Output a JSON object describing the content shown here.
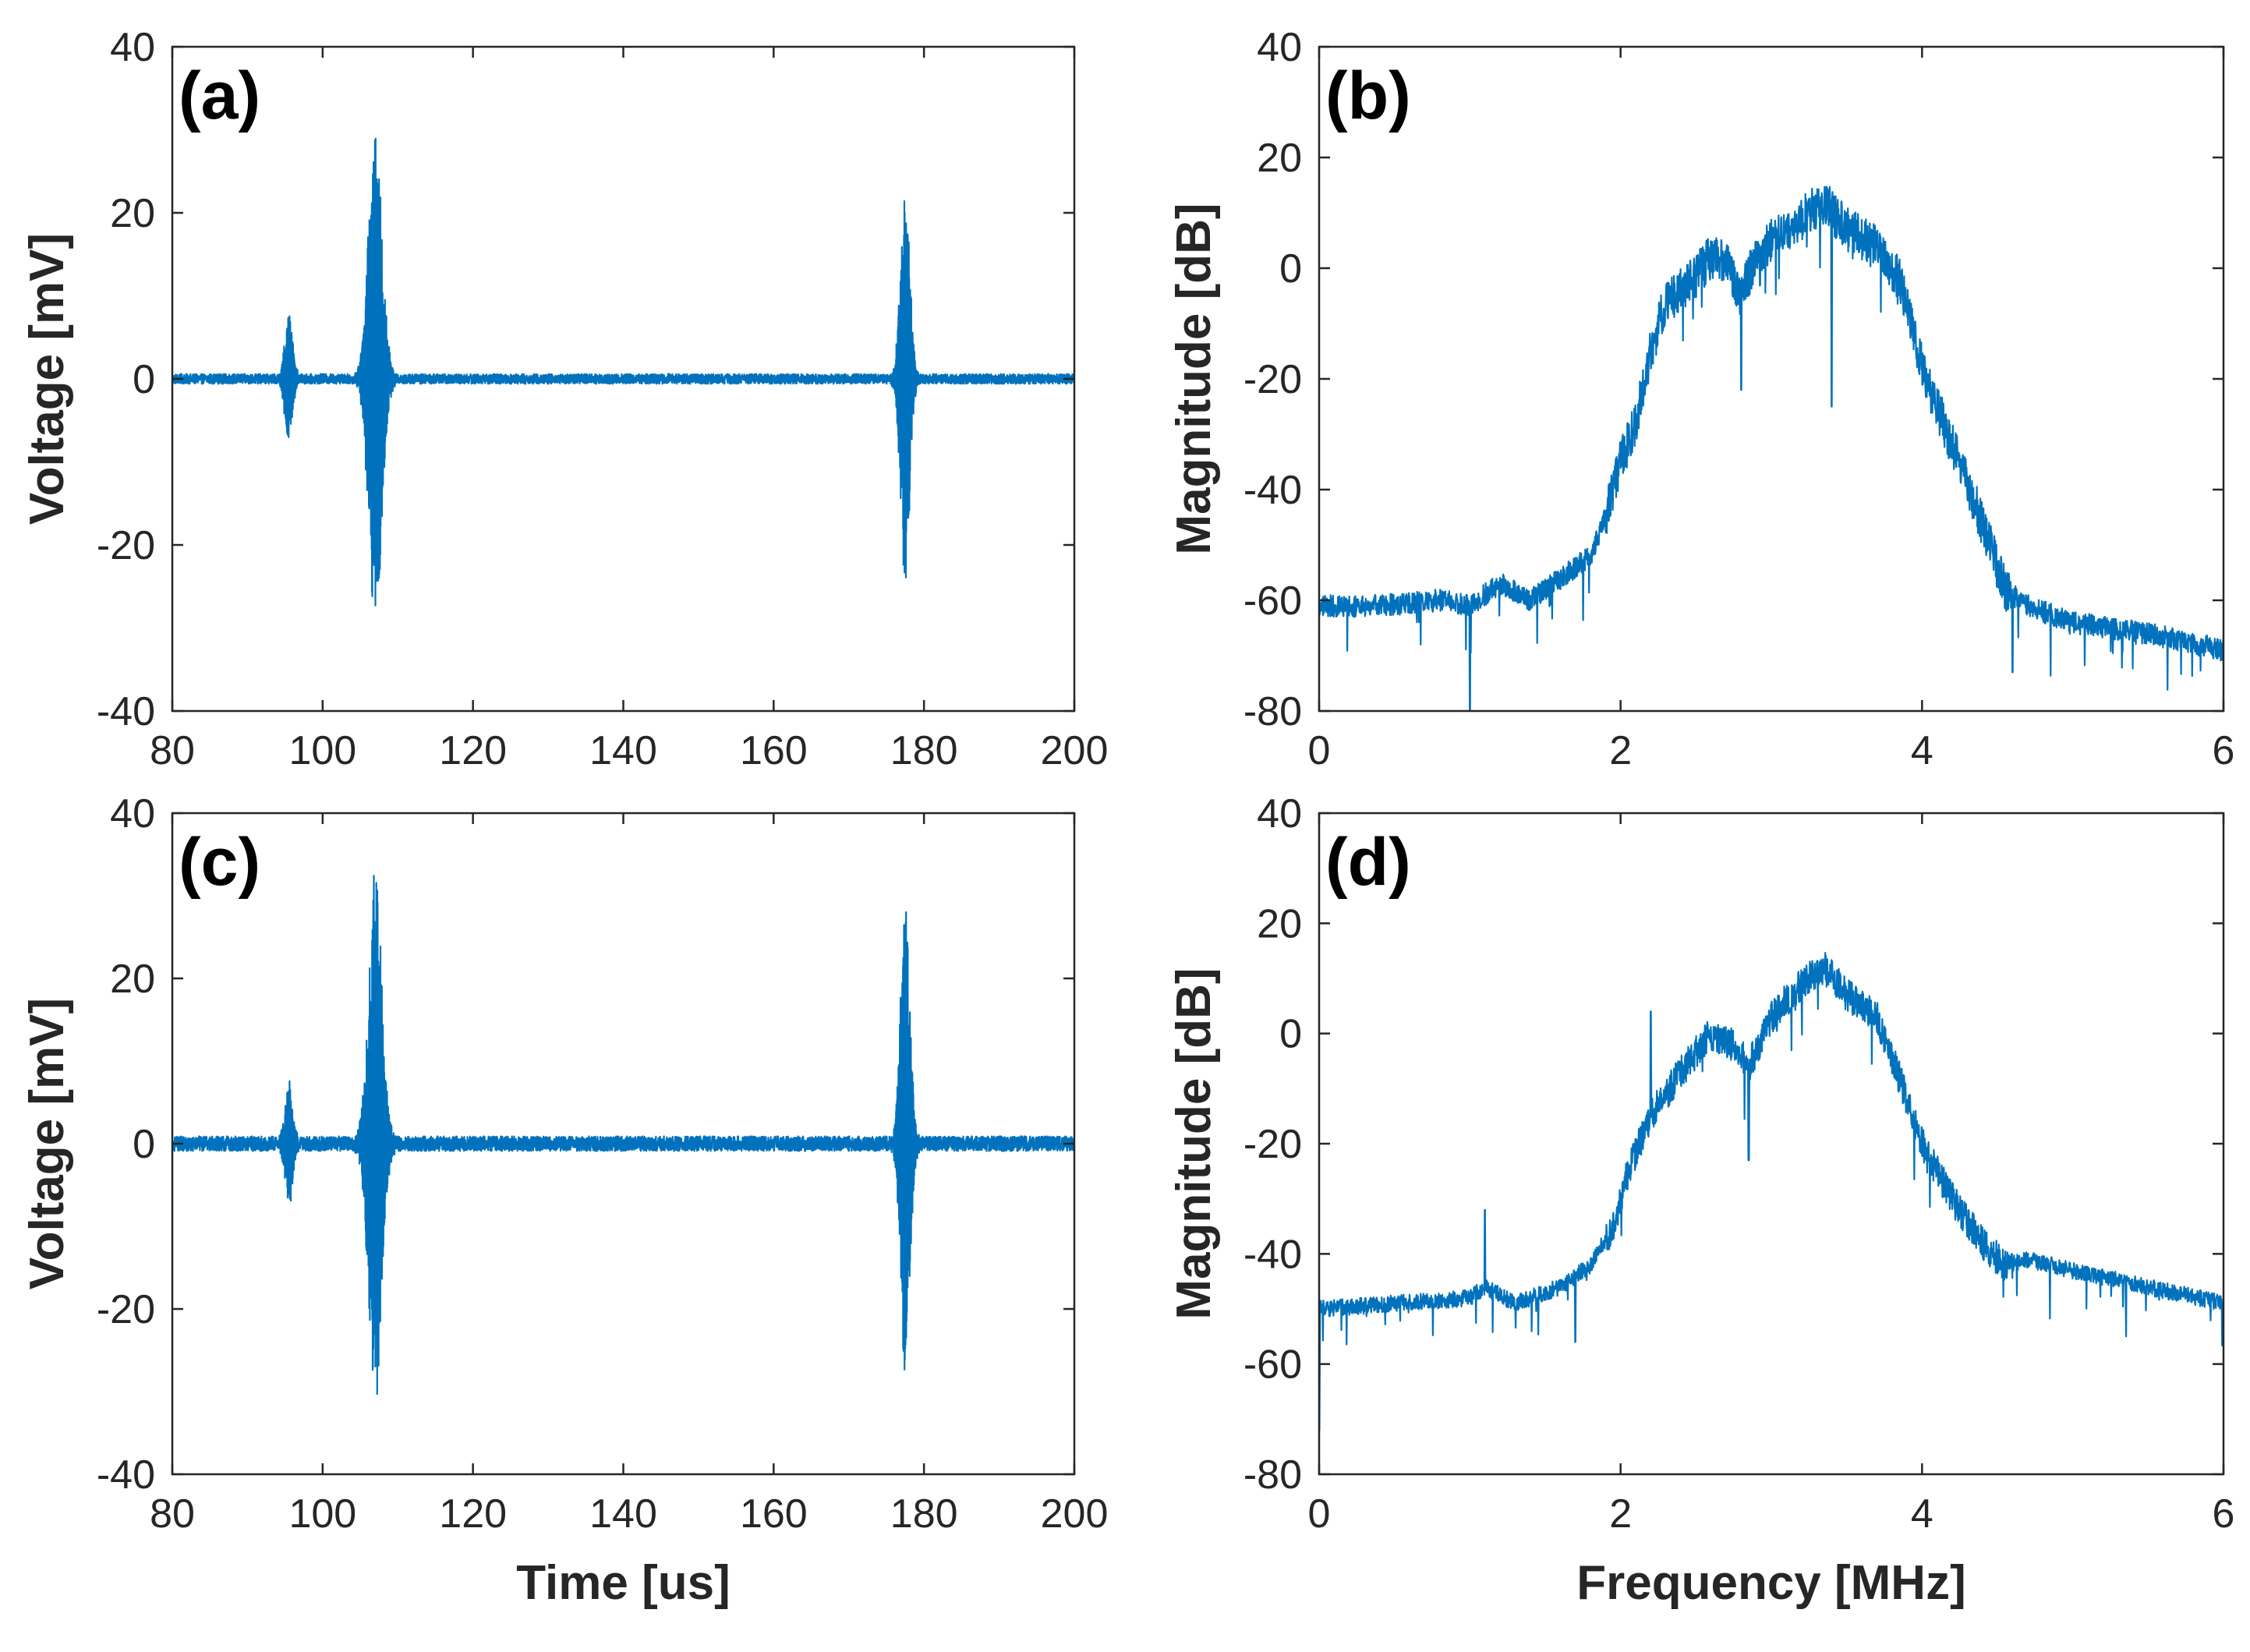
{
  "figure": {
    "series_color": "#0072BD"
  },
  "chart_data": [
    {
      "id": "a",
      "panel_label": "(a)",
      "type": "line",
      "title": "",
      "xlabel": "",
      "ylabel": "Voltage [mV]",
      "xlim": [
        80,
        200
      ],
      "ylim": [
        -40,
        40
      ],
      "xticks": [
        80,
        100,
        120,
        140,
        160,
        180,
        200
      ],
      "yticks": [
        -40,
        -20,
        0,
        20,
        40
      ],
      "xtick_labels": [
        "80",
        "100",
        "120",
        "140",
        "160",
        "180",
        "200"
      ],
      "ytick_labels": [
        "-40",
        "-20",
        "0",
        "20",
        "40"
      ],
      "noise_floor": 0.6,
      "bursts": [
        {
          "center": 95.5,
          "width": 0.9,
          "amp_pos": 8,
          "amp_neg": -8
        },
        {
          "center": 107.0,
          "width": 1.6,
          "amp_pos": 31,
          "amp_neg": -29
        },
        {
          "center": 177.5,
          "width": 1.1,
          "amp_pos": 24,
          "amp_neg": -24
        }
      ]
    },
    {
      "id": "b",
      "panel_label": "(b)",
      "type": "line",
      "title": "",
      "xlabel": "",
      "ylabel": "Magnitude [dB]",
      "xlim": [
        0,
        6
      ],
      "ylim": [
        -80,
        40
      ],
      "xticks": [
        0,
        2,
        4,
        6
      ],
      "yticks": [
        -80,
        -60,
        -40,
        -20,
        0,
        20,
        40
      ],
      "xtick_labels": [
        "0",
        "2",
        "4",
        "6"
      ],
      "ytick_labels": [
        "-80",
        "-60",
        "-40",
        "-20",
        "0",
        "20",
        "40"
      ],
      "noise_scale": 4,
      "envelope": [
        [
          0.0,
          -61
        ],
        [
          0.4,
          -61
        ],
        [
          0.8,
          -60
        ],
        [
          1.0,
          -61
        ],
        [
          1.2,
          -57
        ],
        [
          1.4,
          -60
        ],
        [
          1.6,
          -56
        ],
        [
          1.8,
          -52
        ],
        [
          1.9,
          -45
        ],
        [
          2.0,
          -35
        ],
        [
          2.1,
          -28
        ],
        [
          2.2,
          -15
        ],
        [
          2.3,
          -6
        ],
        [
          2.45,
          -3
        ],
        [
          2.6,
          2
        ],
        [
          2.7,
          1
        ],
        [
          2.8,
          -5
        ],
        [
          2.9,
          2
        ],
        [
          3.0,
          5
        ],
        [
          3.2,
          9
        ],
        [
          3.35,
          12
        ],
        [
          3.5,
          7
        ],
        [
          3.7,
          4
        ],
        [
          3.85,
          -2
        ],
        [
          4.0,
          -18
        ],
        [
          4.2,
          -32
        ],
        [
          4.4,
          -46
        ],
        [
          4.55,
          -58
        ],
        [
          4.7,
          -61
        ],
        [
          5.0,
          -64
        ],
        [
          5.5,
          -66
        ],
        [
          6.0,
          -69
        ]
      ],
      "notches": [
        [
          1.0,
          -82
        ],
        [
          2.8,
          -22
        ],
        [
          3.4,
          -25
        ],
        [
          4.6,
          -73
        ]
      ]
    },
    {
      "id": "c",
      "panel_label": "(c)",
      "type": "line",
      "title": "",
      "xlabel": "Time [us]",
      "ylabel": "Voltage [mV]",
      "xlim": [
        80,
        200
      ],
      "ylim": [
        -40,
        40
      ],
      "xticks": [
        80,
        100,
        120,
        140,
        160,
        180,
        200
      ],
      "yticks": [
        -40,
        -20,
        0,
        20,
        40
      ],
      "xtick_labels": [
        "80",
        "100",
        "120",
        "140",
        "160",
        "180",
        "200"
      ],
      "ytick_labels": [
        "-40",
        "-20",
        "0",
        "20",
        "40"
      ],
      "noise_floor": 0.9,
      "bursts": [
        {
          "center": 95.5,
          "width": 0.9,
          "amp_pos": 7,
          "amp_neg": -7
        },
        {
          "center": 107.0,
          "width": 1.6,
          "amp_pos": 33,
          "amp_neg": -31
        },
        {
          "center": 177.5,
          "width": 1.1,
          "amp_pos": 30,
          "amp_neg": -30
        }
      ]
    },
    {
      "id": "d",
      "panel_label": "(d)",
      "type": "line",
      "title": "",
      "xlabel": "Frequency [MHz]",
      "ylabel": "Magnitude [dB]",
      "xlim": [
        0,
        6
      ],
      "ylim": [
        -80,
        40
      ],
      "xticks": [
        0,
        2,
        4,
        6
      ],
      "yticks": [
        -80,
        -60,
        -40,
        -20,
        0,
        20,
        40
      ],
      "xtick_labels": [
        "0",
        "2",
        "4",
        "6"
      ],
      "ytick_labels": [
        "-80",
        "-60",
        "-40",
        "-20",
        "0",
        "20",
        "40"
      ],
      "noise_scale": 3,
      "envelope": [
        [
          0.0,
          -50
        ],
        [
          0.5,
          -49
        ],
        [
          1.0,
          -48
        ],
        [
          1.1,
          -46
        ],
        [
          1.3,
          -49
        ],
        [
          1.6,
          -46
        ],
        [
          1.8,
          -42
        ],
        [
          1.95,
          -35
        ],
        [
          2.05,
          -25
        ],
        [
          2.2,
          -15
        ],
        [
          2.4,
          -7
        ],
        [
          2.6,
          0
        ],
        [
          2.75,
          -2
        ],
        [
          2.85,
          -6
        ],
        [
          3.0,
          3
        ],
        [
          3.2,
          9
        ],
        [
          3.35,
          12
        ],
        [
          3.5,
          7
        ],
        [
          3.7,
          3
        ],
        [
          3.85,
          -8
        ],
        [
          4.0,
          -20
        ],
        [
          4.2,
          -30
        ],
        [
          4.4,
          -38
        ],
        [
          4.55,
          -42
        ],
        [
          4.7,
          -41
        ],
        [
          5.0,
          -43
        ],
        [
          5.5,
          -46
        ],
        [
          6.0,
          -49
        ]
      ],
      "notches": [
        [
          0.0,
          -72
        ],
        [
          1.1,
          -32
        ],
        [
          1.7,
          -56
        ],
        [
          2.2,
          4
        ],
        [
          2.85,
          -23
        ]
      ]
    }
  ]
}
